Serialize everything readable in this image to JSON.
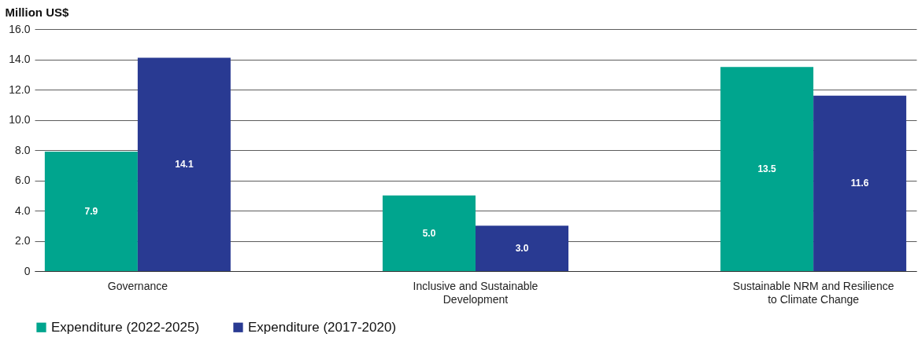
{
  "chart_data": {
    "type": "bar",
    "ylabel": "Million US$",
    "categories": [
      "Governance",
      "Inclusive and Sustainable Development",
      "Sustainable NRM and Resilience to Climate Change"
    ],
    "series": [
      {
        "name": "Expenditure (2022-2025)",
        "color": "#00a58e",
        "values": [
          7.9,
          5.0,
          13.5
        ],
        "value_labels": [
          "7.9",
          "5.0",
          "13.5"
        ]
      },
      {
        "name": "Expenditure (2017-2020)",
        "color": "#293a92",
        "values": [
          14.1,
          3.0,
          11.6
        ],
        "value_labels": [
          "14.1",
          "3.0",
          "11.6"
        ]
      }
    ],
    "ylim": [
      0,
      16
    ],
    "yticks": [
      0,
      {
        "value": 2,
        "label": "2.0"
      },
      {
        "value": 4,
        "label": "4.0"
      },
      {
        "value": 6,
        "label": "6.0"
      },
      {
        "value": 8,
        "label": "8.0"
      },
      {
        "value": 10,
        "label": "10.0"
      },
      {
        "value": 12,
        "label": "12.0"
      },
      {
        "value": 14,
        "label": "14.0"
      },
      {
        "value": 16,
        "label": "16.0"
      }
    ],
    "grid": "y",
    "legend": "bottom"
  }
}
